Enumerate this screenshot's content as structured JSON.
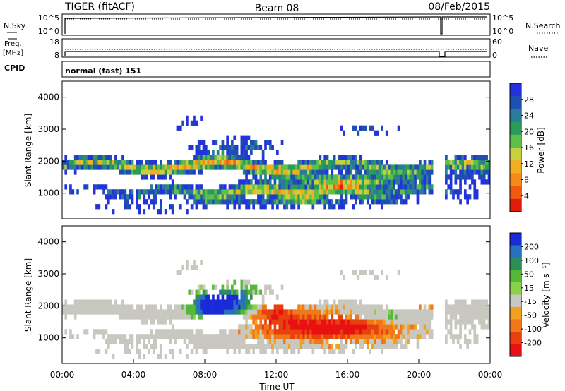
{
  "header": {
    "radar": "TIGER (fitACF)",
    "beam": "Beam 08",
    "date": "08/Feb/2015"
  },
  "top_panels": {
    "nsky_label": "N.Sky",
    "nsky_ticks": [
      "10^5",
      "10^0"
    ],
    "nsearch_label": "N.Search",
    "nsearch_ticks": [
      "10^5",
      "10^0"
    ],
    "freq_label": "Freq.",
    "freq_unit": "[MHz]",
    "freq_ticks": [
      "18",
      "8"
    ],
    "nave_label": "Nave",
    "nave_ticks": [
      "60",
      "0"
    ],
    "cpid_label": "CPID",
    "cpid_value": "normal (fast) 151"
  },
  "chart_data": [
    {
      "type": "heatmap",
      "ylabel": "Slant Range [km]",
      "ylim": [
        200,
        4500
      ],
      "yticks": [
        "4000",
        "3000",
        "2000",
        "1000"
      ],
      "xlim_hours": [
        0,
        24
      ],
      "colorbar": {
        "label": "Power [dB]",
        "ticks": [
          "28",
          "24",
          "20",
          "16",
          "12",
          "8",
          "4"
        ],
        "colors": [
          "#2233dd",
          "#1f4fb0",
          "#2a7a9a",
          "#2c9a58",
          "#5cc04a",
          "#c8d040",
          "#f0b020",
          "#f58a18",
          "#f05a10",
          "#e01c0c"
        ]
      }
    },
    {
      "type": "heatmap",
      "ylabel": "Slant Range [km]",
      "ylim": [
        200,
        4500
      ],
      "yticks": [
        "4000",
        "3000",
        "2000",
        "1000"
      ],
      "xlabel": "Time UT",
      "xticks": [
        "00:00",
        "04:00",
        "08:00",
        "12:00",
        "16:00",
        "20:00",
        "00:00"
      ],
      "xlim_hours": [
        0,
        24
      ],
      "colorbar": {
        "label": "Velocity [m s⁻¹]",
        "ticks": [
          "200",
          "100",
          "50",
          "15",
          "-15",
          "-50",
          "-100",
          "-200"
        ],
        "colors": [
          "#1a2ad8",
          "#2870c0",
          "#2e8e5a",
          "#56b83a",
          "#8ad04a",
          "#c8c8c0",
          "#f2a020",
          "#f07818",
          "#e84010",
          "#e81010"
        ]
      }
    }
  ]
}
